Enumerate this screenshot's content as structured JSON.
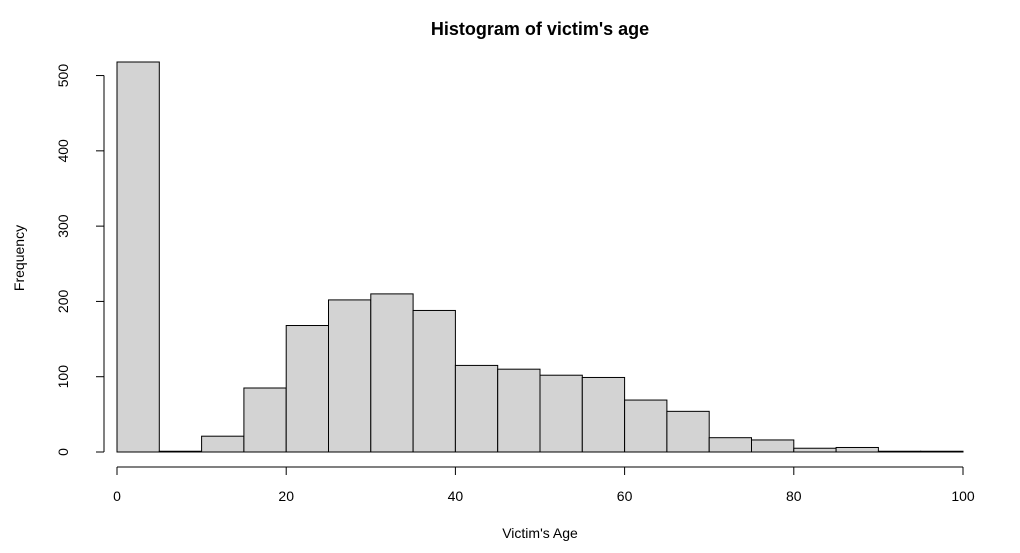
{
  "chart_data": {
    "type": "bar",
    "title": "Histogram of victim's age",
    "xlabel": "Victim's Age",
    "ylabel": "Frequency",
    "bin_edges": [
      0,
      5,
      10,
      15,
      20,
      25,
      30,
      35,
      40,
      45,
      50,
      55,
      60,
      65,
      70,
      75,
      80,
      85,
      90,
      95,
      100
    ],
    "values": [
      518,
      1,
      21,
      85,
      168,
      202,
      210,
      188,
      115,
      110,
      102,
      99,
      69,
      54,
      19,
      16,
      5,
      6,
      1,
      1
    ],
    "xlim": [
      0,
      100
    ],
    "ylim": [
      0,
      518
    ],
    "x_ticks": [
      0,
      20,
      40,
      60,
      80,
      100
    ],
    "y_ticks": [
      0,
      100,
      200,
      300,
      400,
      500
    ],
    "bar_color": "#d3d3d3",
    "border_color": "#000000",
    "grid": false
  }
}
